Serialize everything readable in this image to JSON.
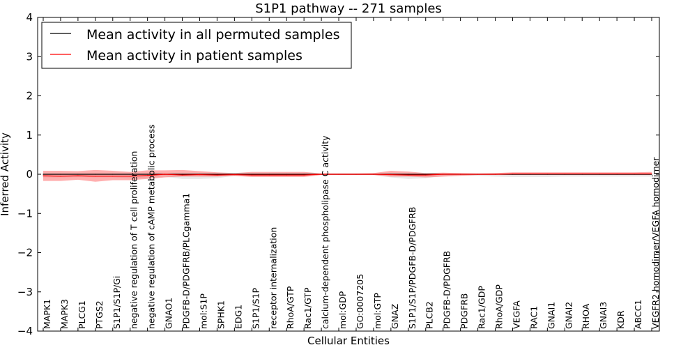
{
  "chart_data": {
    "type": "line",
    "title": "S1P1 pathway -- 271 samples",
    "xlabel": "Cellular Entities",
    "ylabel": "Inferred Activity",
    "ylim": [
      -4,
      4
    ],
    "yticks": [
      "4",
      "3",
      "2",
      "1",
      "0",
      "−1",
      "−2",
      "−3",
      "−4"
    ],
    "yticks_values": [
      4,
      3,
      2,
      1,
      0,
      -1,
      -2,
      -3,
      -4
    ],
    "legend": {
      "location": "top-left",
      "entries": [
        {
          "label": "Mean activity in all permuted samples",
          "color": "#000000"
        },
        {
          "label": "Mean activity in patient samples",
          "color": "#ff0000"
        }
      ]
    },
    "categories": [
      "MAPK1",
      "MAPK3",
      "PLCG1",
      "PTGS2",
      "S1P1/S1P/Gi",
      "negative regulation of T cell proliferation",
      "negative regulation of cAMP metabolic process",
      "GNAO1",
      "PDGFB-D/PDGFRB/PLCgamma1",
      "mol:S1P",
      "SPHK1",
      "EDG1",
      "S1P1/S1P",
      "receptor internalization",
      "RhoA/GTP",
      "Rac1/GTP",
      "calcium-dependent phospholipase C activity",
      "mol:GDP",
      "GO:0007205",
      "mol:GTP",
      "GNAZ",
      "S1P1/S1P/PDGFB-D/PDGFRB",
      "PLCB2",
      "PDGFB-D/PDGFRB",
      "PDGFRB",
      "Rac1/GDP",
      "RhoA/GDP",
      "VEGFA",
      "RAC1",
      "GNAI1",
      "GNAI2",
      "RHOA",
      "GNAI3",
      "KDR",
      "ABCC1",
      "VEGFR2 homodimer/VEGFA homodimer"
    ],
    "series": [
      {
        "name": "Mean activity in all permuted samples",
        "color": "#000000",
        "values": [
          0.0,
          0.0,
          0.0,
          0.0,
          0.0,
          0.0,
          0.0,
          0.0,
          0.0,
          0.0,
          0.0,
          0.0,
          0.0,
          0.0,
          0.0,
          0.0,
          0.0,
          0.0,
          0.0,
          0.0,
          0.0,
          0.0,
          0.0,
          0.0,
          0.0,
          0.0,
          0.0,
          0.0,
          0.0,
          0.0,
          0.0,
          0.0,
          0.0,
          0.0,
          0.0,
          0.0
        ],
        "band_upper": [
          0.02,
          0.02,
          0.02,
          0.02,
          0.02,
          0.02,
          0.02,
          0.02,
          0.02,
          0.02,
          0.02,
          0.02,
          0.02,
          0.02,
          0.02,
          0.02,
          0.02,
          0.02,
          0.02,
          0.02,
          0.02,
          0.02,
          0.02,
          0.02,
          0.02,
          0.02,
          0.02,
          0.02,
          0.02,
          0.02,
          0.02,
          0.02,
          0.02,
          0.02,
          0.02,
          0.02
        ],
        "band_lower": [
          -0.08,
          -0.08,
          -0.07,
          -0.08,
          -0.08,
          -0.1,
          -0.1,
          -0.06,
          -0.12,
          -0.12,
          -0.1,
          -0.04,
          -0.04,
          -0.04,
          -0.04,
          -0.04,
          -0.02,
          -0.02,
          -0.02,
          -0.02,
          -0.08,
          -0.12,
          -0.1,
          -0.05,
          -0.03,
          -0.04,
          -0.06,
          -0.07,
          -0.07,
          -0.07,
          -0.06,
          -0.06,
          -0.06,
          -0.06,
          -0.06,
          -0.06
        ]
      },
      {
        "name": "Mean activity in patient samples",
        "color": "#ff0000",
        "values": [
          -0.04,
          -0.05,
          -0.04,
          -0.05,
          -0.05,
          -0.05,
          -0.03,
          0.0,
          -0.02,
          -0.01,
          -0.02,
          -0.01,
          -0.02,
          -0.02,
          -0.02,
          -0.02,
          0.0,
          0.0,
          0.0,
          0.0,
          -0.01,
          -0.02,
          -0.02,
          0.0,
          0.0,
          0.0,
          0.0,
          0.01,
          0.01,
          0.01,
          0.01,
          0.01,
          0.01,
          0.01,
          0.01,
          0.01
        ],
        "band_upper": [
          0.09,
          0.09,
          0.08,
          0.11,
          0.09,
          0.06,
          0.1,
          0.1,
          0.11,
          0.08,
          0.05,
          0.03,
          0.06,
          0.06,
          0.06,
          0.06,
          0.02,
          0.02,
          0.02,
          0.03,
          0.09,
          0.07,
          0.03,
          0.04,
          0.03,
          0.02,
          0.03,
          0.05,
          0.05,
          0.05,
          0.05,
          0.05,
          0.05,
          0.05,
          0.05,
          0.06
        ],
        "band_lower": [
          -0.17,
          -0.17,
          -0.14,
          -0.19,
          -0.15,
          -0.15,
          -0.12,
          -0.08,
          -0.06,
          -0.06,
          -0.06,
          -0.04,
          -0.07,
          -0.07,
          -0.07,
          -0.07,
          -0.02,
          -0.02,
          -0.02,
          -0.02,
          -0.06,
          -0.06,
          -0.08,
          -0.06,
          -0.04,
          -0.02,
          -0.02,
          -0.02,
          -0.02,
          -0.02,
          -0.02,
          -0.02,
          -0.02,
          -0.02,
          -0.02,
          -0.02
        ]
      }
    ],
    "reference_line": {
      "y": 0,
      "style": "dotted"
    }
  }
}
